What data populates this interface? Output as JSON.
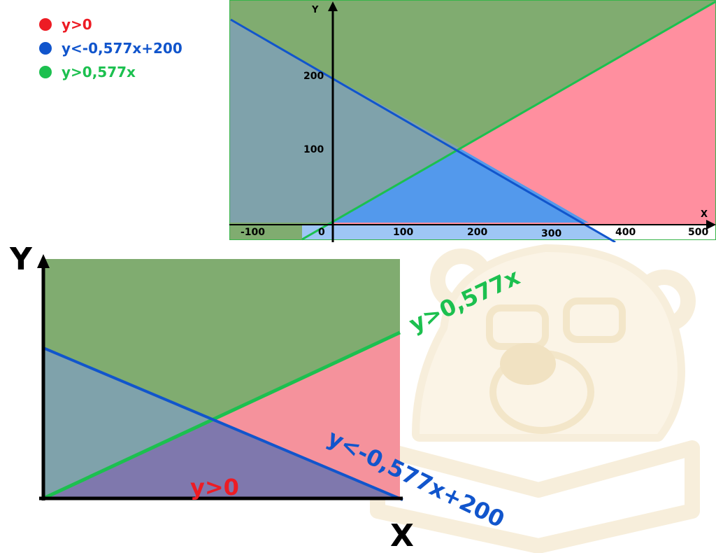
{
  "legend": {
    "items": [
      {
        "label": "y>0",
        "color": "#ed1c24"
      },
      {
        "label": "y<-0,577x+200",
        "color": "#1155cc"
      },
      {
        "label": "y>0,577x",
        "color": "#1cc04f"
      }
    ]
  },
  "top_chart": {
    "y_axis_label": "Y",
    "x_axis_label": "X",
    "y_ticks": [
      "200",
      "100"
    ],
    "x_ticks": [
      "-100",
      "0",
      "100",
      "200",
      "300",
      "400",
      "500"
    ]
  },
  "bottom_chart": {
    "y_axis_label": "Y",
    "x_axis_label": "X",
    "label_red": "y>0",
    "label_green": "y>0,577x",
    "label_blue": "y<-0,577x+200"
  },
  "colors": {
    "green_region": "#80ac70",
    "red_region": "#ff8f9f",
    "blue_region": "#5399ec",
    "teal_region": "#7fa2ab",
    "purple_region": "#7f78ad",
    "green_line": "#1cc04f",
    "blue_line": "#1155cc"
  },
  "chart_data": {
    "type": "area",
    "series": [
      {
        "name": "y>0",
        "inequality": "y > 0"
      },
      {
        "name": "y<-0,577x+200",
        "slope": -0.577,
        "intercept": 200
      },
      {
        "name": "y>0,577x",
        "slope": 0.577,
        "intercept": 0
      }
    ],
    "x_ticks": [
      -100,
      0,
      100,
      200,
      300,
      400,
      500
    ],
    "y_ticks": [
      100,
      200
    ],
    "xlim": [
      -140,
      520
    ],
    "ylim": [
      -20,
      310
    ],
    "intersection": {
      "x": 173,
      "y": 100
    },
    "grid": false
  }
}
